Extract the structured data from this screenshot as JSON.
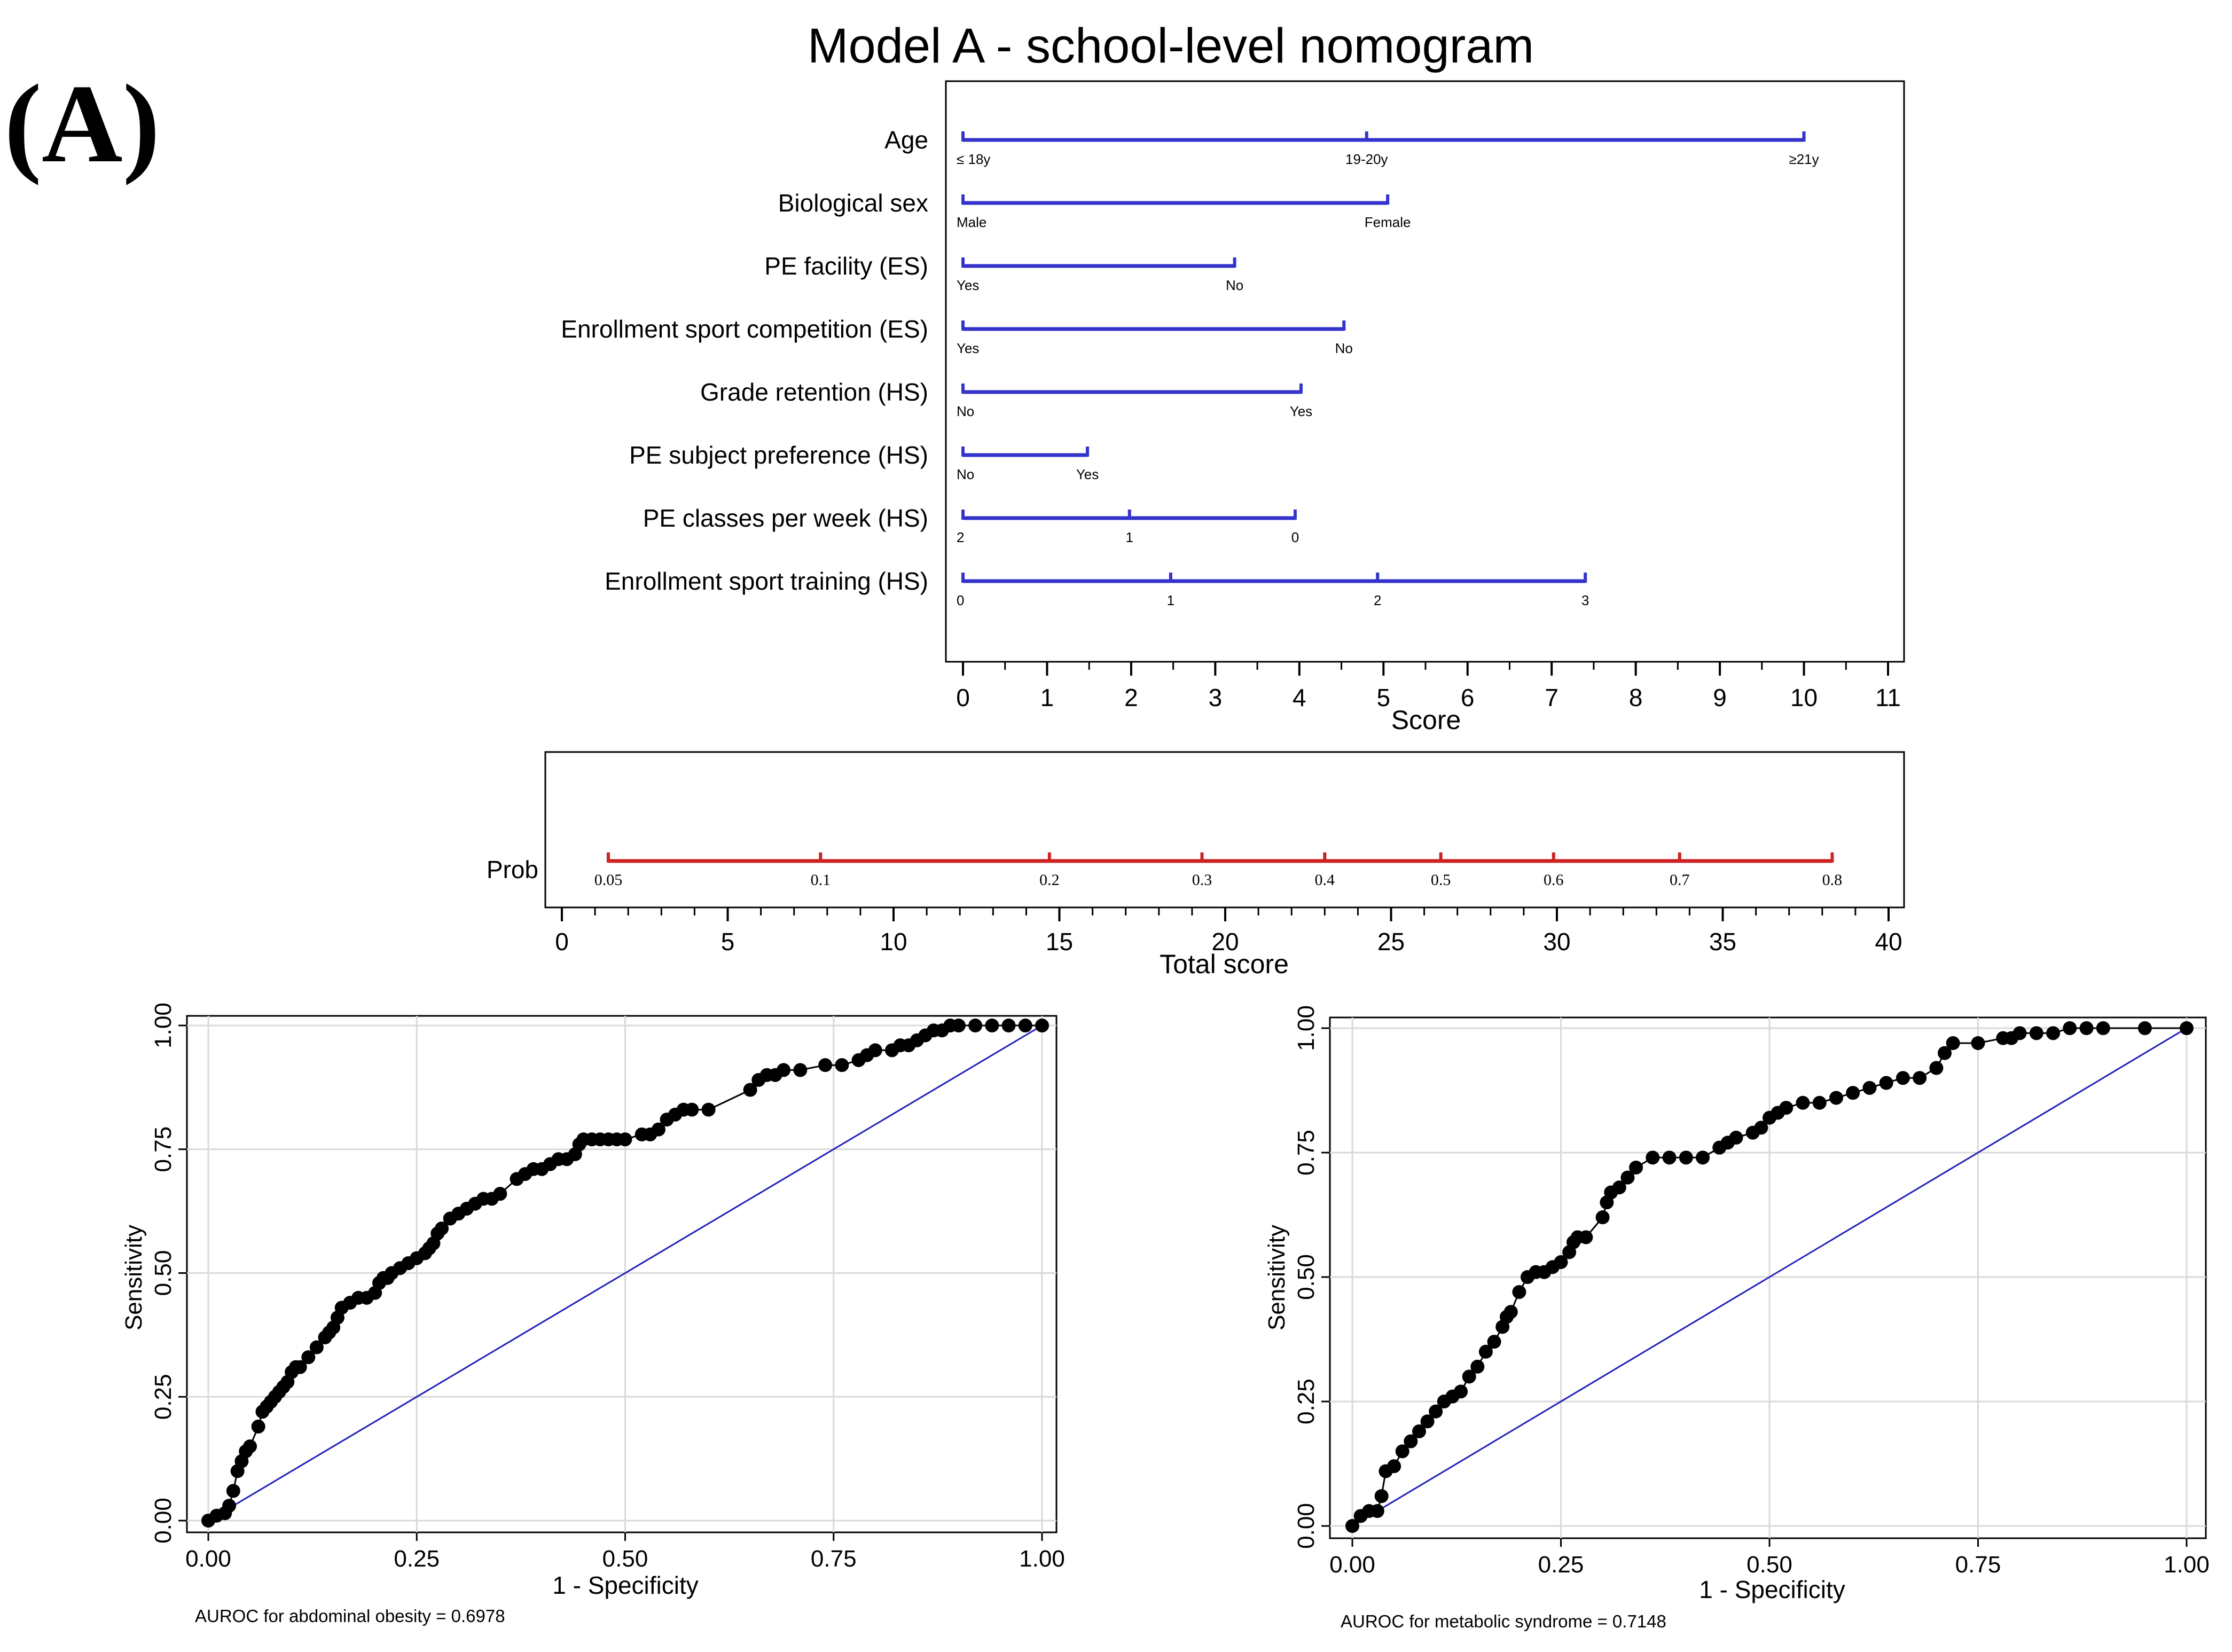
{
  "panel_label": "(A)",
  "colors": {
    "nomogram_line": "#3333cc",
    "prob_line": "#cc2222",
    "roc_curve": "#000000",
    "reference_line": "#2222bb",
    "grid": "#d9d9d9",
    "frame": "#000000"
  },
  "chart_data": [
    {
      "type": "nomogram",
      "title": "Model A - school-level nomogram",
      "xlabel": "Score",
      "xlim": [
        0,
        11
      ],
      "ticks": [
        0,
        1,
        2,
        3,
        4,
        5,
        6,
        7,
        8,
        9,
        10,
        11
      ],
      "variables": [
        {
          "name": "Age",
          "levels": [
            {
              "label": "≤ 18y",
              "score": 0
            },
            {
              "label": "19-20y",
              "score": 4.8
            },
            {
              "label": "≥21y",
              "score": 10
            }
          ]
        },
        {
          "name": "Biological sex",
          "levels": [
            {
              "label": "Male",
              "score": 0
            },
            {
              "label": "Female",
              "score": 5.05
            }
          ]
        },
        {
          "name": "PE facility (ES)",
          "levels": [
            {
              "label": "Yes",
              "score": 0
            },
            {
              "label": "No",
              "score": 3.23
            }
          ]
        },
        {
          "name": "Enrollment sport competition (ES)",
          "levels": [
            {
              "label": "Yes",
              "score": 0
            },
            {
              "label": "No",
              "score": 4.53
            }
          ]
        },
        {
          "name": "Grade retention (HS)",
          "levels": [
            {
              "label": "No",
              "score": 0
            },
            {
              "label": "Yes",
              "score": 4.02
            }
          ]
        },
        {
          "name": "PE subject preference (HS)",
          "levels": [
            {
              "label": "No",
              "score": 0
            },
            {
              "label": "Yes",
              "score": 1.48
            }
          ]
        },
        {
          "name": "PE classes per week (HS)",
          "levels": [
            {
              "label": "2",
              "score": 0
            },
            {
              "label": "1",
              "score": 1.98
            },
            {
              "label": "0",
              "score": 3.95
            }
          ]
        },
        {
          "name": "Enrollment sport training (HS)",
          "levels": [
            {
              "label": "0",
              "score": 0
            },
            {
              "label": "1",
              "score": 2.47
            },
            {
              "label": "2",
              "score": 4.93
            },
            {
              "label": "3",
              "score": 7.4
            }
          ]
        }
      ]
    },
    {
      "type": "nomogram-probability",
      "row_label": "Prob",
      "xlabel": "Total score",
      "xlim": [
        0,
        40
      ],
      "ticks": [
        0,
        5,
        10,
        15,
        20,
        25,
        30,
        35,
        40
      ],
      "probabilities": [
        {
          "label": "0.05",
          "total": 1.4
        },
        {
          "label": "0.1",
          "total": 7.8
        },
        {
          "label": "0.2",
          "total": 14.7
        },
        {
          "label": "0.3",
          "total": 19.3
        },
        {
          "label": "0.4",
          "total": 23.0
        },
        {
          "label": "0.5",
          "total": 26.5
        },
        {
          "label": "0.6",
          "total": 29.9
        },
        {
          "label": "0.7",
          "total": 33.7
        },
        {
          "label": "0.8",
          "total": 38.3
        }
      ]
    },
    {
      "type": "line",
      "xlabel": "1 - Specificity",
      "ylabel": "Sensitivity",
      "xlim": [
        0,
        1
      ],
      "ylim": [
        0,
        1
      ],
      "ticks": [
        "0.00",
        "0.25",
        "0.50",
        "0.75",
        "1.00"
      ],
      "grid": true,
      "caption": "AUROC for abdominal obesity = 0.6978",
      "x": [
        0,
        0.01,
        0.02,
        0.025,
        0.03,
        0.035,
        0.04,
        0.045,
        0.05,
        0.06,
        0.065,
        0.07,
        0.075,
        0.08,
        0.085,
        0.09,
        0.095,
        0.1,
        0.105,
        0.11,
        0.12,
        0.13,
        0.14,
        0.145,
        0.15,
        0.155,
        0.16,
        0.17,
        0.18,
        0.19,
        0.2,
        0.205,
        0.21,
        0.215,
        0.22,
        0.23,
        0.24,
        0.25,
        0.26,
        0.265,
        0.27,
        0.275,
        0.28,
        0.29,
        0.3,
        0.31,
        0.32,
        0.33,
        0.34,
        0.35,
        0.37,
        0.38,
        0.39,
        0.4,
        0.41,
        0.42,
        0.43,
        0.44,
        0.445,
        0.45,
        0.46,
        0.47,
        0.48,
        0.49,
        0.5,
        0.52,
        0.53,
        0.54,
        0.55,
        0.56,
        0.57,
        0.58,
        0.6,
        0.65,
        0.66,
        0.67,
        0.68,
        0.69,
        0.71,
        0.74,
        0.76,
        0.78,
        0.79,
        0.8,
        0.82,
        0.83,
        0.84,
        0.85,
        0.86,
        0.87,
        0.88,
        0.89,
        0.9,
        0.92,
        0.94,
        0.96,
        0.98,
        1.0
      ],
      "y": [
        0,
        0.01,
        0.015,
        0.03,
        0.06,
        0.1,
        0.12,
        0.14,
        0.15,
        0.19,
        0.22,
        0.23,
        0.24,
        0.25,
        0.26,
        0.27,
        0.28,
        0.3,
        0.31,
        0.31,
        0.33,
        0.35,
        0.37,
        0.38,
        0.39,
        0.41,
        0.43,
        0.44,
        0.45,
        0.45,
        0.46,
        0.48,
        0.49,
        0.49,
        0.5,
        0.51,
        0.52,
        0.53,
        0.54,
        0.55,
        0.56,
        0.58,
        0.59,
        0.61,
        0.62,
        0.63,
        0.64,
        0.65,
        0.65,
        0.66,
        0.69,
        0.7,
        0.71,
        0.71,
        0.72,
        0.73,
        0.73,
        0.74,
        0.76,
        0.77,
        0.77,
        0.77,
        0.77,
        0.77,
        0.77,
        0.78,
        0.78,
        0.79,
        0.81,
        0.82,
        0.83,
        0.83,
        0.83,
        0.87,
        0.89,
        0.9,
        0.9,
        0.91,
        0.91,
        0.92,
        0.92,
        0.93,
        0.94,
        0.95,
        0.95,
        0.96,
        0.96,
        0.97,
        0.98,
        0.99,
        0.99,
        1.0,
        1.0,
        1.0,
        1.0,
        1.0,
        1.0,
        1.0
      ]
    },
    {
      "type": "line",
      "xlabel": "1 - Specificity",
      "ylabel": "Sensitivity",
      "xlim": [
        0,
        1
      ],
      "ylim": [
        0,
        1
      ],
      "ticks": [
        "0.00",
        "0.25",
        "0.50",
        "0.75",
        "1.00"
      ],
      "grid": true,
      "caption": "AUROC for metabolic syndrome = 0.7148",
      "x": [
        0,
        0.01,
        0.02,
        0.03,
        0.035,
        0.04,
        0.05,
        0.06,
        0.07,
        0.08,
        0.09,
        0.1,
        0.11,
        0.12,
        0.13,
        0.14,
        0.15,
        0.16,
        0.17,
        0.18,
        0.185,
        0.19,
        0.2,
        0.21,
        0.22,
        0.23,
        0.24,
        0.25,
        0.26,
        0.265,
        0.27,
        0.28,
        0.3,
        0.305,
        0.31,
        0.32,
        0.33,
        0.34,
        0.36,
        0.38,
        0.4,
        0.42,
        0.44,
        0.45,
        0.46,
        0.48,
        0.49,
        0.5,
        0.51,
        0.52,
        0.54,
        0.56,
        0.58,
        0.6,
        0.62,
        0.64,
        0.66,
        0.68,
        0.7,
        0.71,
        0.72,
        0.75,
        0.78,
        0.79,
        0.8,
        0.82,
        0.84,
        0.86,
        0.88,
        0.9,
        0.95,
        1.0
      ],
      "y": [
        0,
        0.02,
        0.03,
        0.03,
        0.06,
        0.11,
        0.12,
        0.15,
        0.17,
        0.19,
        0.21,
        0.23,
        0.25,
        0.26,
        0.27,
        0.3,
        0.32,
        0.35,
        0.37,
        0.4,
        0.42,
        0.43,
        0.47,
        0.5,
        0.51,
        0.51,
        0.52,
        0.53,
        0.55,
        0.57,
        0.58,
        0.58,
        0.62,
        0.65,
        0.67,
        0.68,
        0.7,
        0.72,
        0.74,
        0.74,
        0.74,
        0.74,
        0.76,
        0.77,
        0.78,
        0.79,
        0.8,
        0.82,
        0.83,
        0.84,
        0.85,
        0.85,
        0.86,
        0.87,
        0.88,
        0.89,
        0.9,
        0.9,
        0.92,
        0.95,
        0.97,
        0.97,
        0.98,
        0.98,
        0.99,
        0.99,
        0.99,
        1.0,
        1.0,
        1.0,
        1.0,
        1.0
      ]
    }
  ]
}
